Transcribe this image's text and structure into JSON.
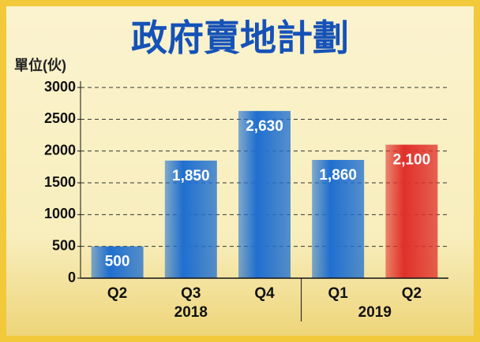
{
  "chart_data": {
    "type": "bar",
    "title": "政府賣地計劃",
    "y_label": "單位(伙)",
    "groups": [
      {
        "name": "2018",
        "categories": [
          "Q2",
          "Q3",
          "Q4"
        ],
        "values": [
          500,
          1850,
          2630
        ],
        "value_labels": [
          "500",
          "1,850",
          "2,630"
        ],
        "colors": [
          "#1f6fd0",
          "#1f6fd0",
          "#1f6fd0"
        ]
      },
      {
        "name": "2019",
        "categories": [
          "Q1",
          "Q2"
        ],
        "values": [
          1860,
          2100
        ],
        "value_labels": [
          "1,860",
          "2,100"
        ],
        "colors": [
          "#1f6fd0",
          "#e0302a"
        ]
      }
    ],
    "ylim": [
      0,
      3000
    ],
    "yticks": [
      0,
      500,
      1000,
      1500,
      2000,
      2500,
      3000
    ],
    "grid": true
  }
}
